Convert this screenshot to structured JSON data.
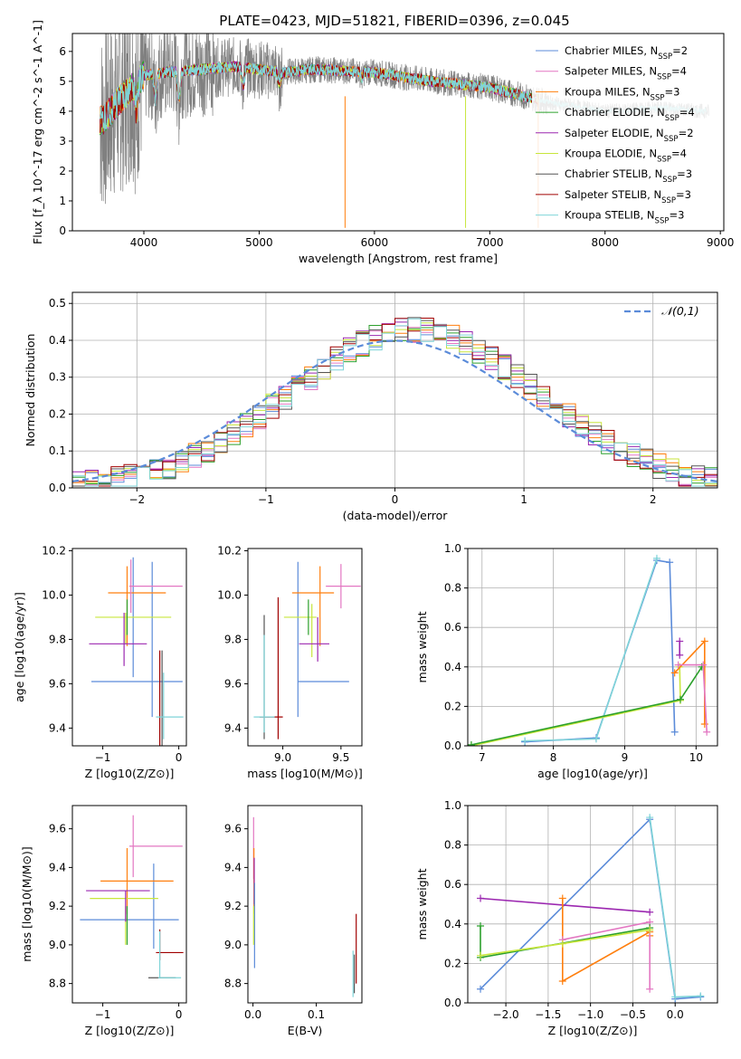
{
  "figure": {
    "title": "PLATE=0423, MJD=51821, FIBERID=0396, z=0.045"
  },
  "colors": {
    "Chabrier MILES": "#5b8bd9",
    "Salpeter MILES": "#e377c2",
    "Kroupa MILES": "#ff7f0e",
    "Chabrier ELODIE": "#2ca02c",
    "Salpeter ELODIE": "#9b27b0",
    "Kroupa ELODIE": "#c8e63c",
    "Chabrier STELIB": "#555555",
    "Salpeter STELIB": "#a00000",
    "Kroupa STELIB": "#7fd4d8",
    "data": "#808080"
  },
  "chart_data": [
    {
      "id": "spectrum",
      "type": "line",
      "xlabel": "wavelength [Angstrom, rest frame]",
      "ylabel": "Flux [f_λ 10^-17 erg cm^-2 s^-1 A^-1]",
      "xlim": [
        3380,
        9030
      ],
      "ylim": [
        0,
        6.6
      ],
      "xticks": [
        4000,
        5000,
        6000,
        7000,
        8000,
        9000
      ],
      "yticks": [
        0,
        1,
        2,
        3,
        4,
        5,
        6
      ],
      "grid": false,
      "legend_position": "upper-right",
      "legend": [
        {
          "name": "Chabrier MILES",
          "label": "Chabrier MILES, N_SSP=2"
        },
        {
          "name": "Salpeter MILES",
          "label": "Salpeter MILES, N_SSP=4"
        },
        {
          "name": "Kroupa MILES",
          "label": "Kroupa MILES, N_SSP=3"
        },
        {
          "name": "Chabrier ELODIE",
          "label": "Chabrier ELODIE, N_SSP=4"
        },
        {
          "name": "Salpeter ELODIE",
          "label": "Salpeter ELODIE, N_SSP=2"
        },
        {
          "name": "Kroupa ELODIE",
          "label": "Kroupa ELODIE, N_SSP=4"
        },
        {
          "name": "Chabrier STELIB",
          "label": "Chabrier STELIB, N_SSP=3"
        },
        {
          "name": "Salpeter STELIB",
          "label": "Salpeter STELIB, N_SSP=3"
        },
        {
          "name": "Kroupa STELIB",
          "label": "Kroupa STELIB, N_SSP=3"
        }
      ],
      "data_range": [
        3620,
        8900
      ],
      "continuum": [
        [
          3650,
          3.7
        ],
        [
          3750,
          4.2
        ],
        [
          3900,
          4.8
        ],
        [
          4000,
          5.2
        ],
        [
          4200,
          5.3
        ],
        [
          4500,
          5.4
        ],
        [
          4800,
          5.5
        ],
        [
          5000,
          5.4
        ],
        [
          5200,
          5.3
        ],
        [
          5500,
          5.4
        ],
        [
          6000,
          5.3
        ],
        [
          6500,
          5.0
        ],
        [
          7000,
          4.8
        ],
        [
          7500,
          4.3
        ],
        [
          8000,
          4.0
        ],
        [
          8500,
          4.1
        ],
        [
          8850,
          4.0
        ]
      ],
      "model_range": [
        3620,
        7420
      ],
      "features": [
        [
          3934,
          4.0
        ],
        [
          4101,
          4.3
        ],
        [
          4304,
          4.3
        ],
        [
          4861,
          4.8
        ],
        [
          5175,
          4.9
        ],
        [
          5890,
          5.1
        ],
        [
          6563,
          5.0
        ]
      ]
    },
    {
      "id": "residuals",
      "type": "bar",
      "xlabel": "(data-model)/error",
      "ylabel": "Normed distribution",
      "xlim": [
        -2.5,
        2.5
      ],
      "ylim": [
        0,
        0.53
      ],
      "xticks": [
        -2,
        -1,
        0,
        1,
        2
      ],
      "yticks": [
        0.0,
        0.1,
        0.2,
        0.3,
        0.4,
        0.5
      ],
      "grid": true,
      "legend_position": "upper-right",
      "reference": {
        "label": "𝒩(0,1)",
        "mean": 0,
        "sigma": 1
      },
      "bin_width": 0.1
    },
    {
      "id": "age-vs-Z",
      "type": "scatter",
      "xlabel": "Z [log10(Z/Z⊙)]",
      "ylabel": "age [log10(age/yr)]",
      "xlim": [
        -1.4,
        0.1
      ],
      "ylim": [
        9.32,
        10.21
      ],
      "xticks": [
        -1,
        0
      ],
      "yticks": [
        9.4,
        9.6,
        9.8,
        10.0,
        10.2
      ],
      "grid": false,
      "errorbars": [
        {
          "series": "Chabrier MILES",
          "x": -0.55,
          "y": 9.61,
          "xerr": 0.6,
          "yerr": 0
        },
        {
          "series": "Chabrier MILES",
          "x": -0.35,
          "y": 9.8,
          "xerr": 0,
          "yerr": 0.35
        },
        {
          "series": "Chabrier MILES",
          "x": -0.6,
          "y": 9.9,
          "xerr": 0,
          "yerr": 0.27
        },
        {
          "series": "Kroupa MILES",
          "x": -0.55,
          "y": 10.01,
          "xerr": 0.38,
          "yerr": 0
        },
        {
          "series": "Kroupa MILES",
          "x": -0.68,
          "y": 9.95,
          "xerr": 0,
          "yerr": 0.18
        },
        {
          "series": "Salpeter MILES",
          "x": -0.3,
          "y": 10.04,
          "xerr": 0.35,
          "yerr": 0
        },
        {
          "series": "Salpeter MILES",
          "x": -0.63,
          "y": 10.04,
          "xerr": 0,
          "yerr": 0.12
        },
        {
          "series": "Kroupa ELODIE",
          "x": -0.6,
          "y": 9.9,
          "xerr": 0.5,
          "yerr": 0
        },
        {
          "series": "Kroupa ELODIE",
          "x": -0.7,
          "y": 9.85,
          "xerr": 0,
          "yerr": 0.07
        },
        {
          "series": "Chabrier ELODIE",
          "x": -0.68,
          "y": 9.9,
          "xerr": 0,
          "yerr": 0.08
        },
        {
          "series": "Salpeter ELODIE",
          "x": -0.8,
          "y": 9.78,
          "xerr": 0.38,
          "yerr": 0
        },
        {
          "series": "Salpeter ELODIE",
          "x": -0.72,
          "y": 9.8,
          "xerr": 0,
          "yerr": 0.12
        },
        {
          "series": "Chabrier STELIB",
          "x": -0.22,
          "y": 9.45,
          "xerr": 0,
          "yerr": 0.3
        },
        {
          "series": "Salpeter STELIB",
          "x": -0.25,
          "y": 9.45,
          "xerr": 0,
          "yerr": 0.3
        },
        {
          "series": "Kroupa STELIB",
          "x": -0.12,
          "y": 9.45,
          "xerr": 0.18,
          "yerr": 0
        },
        {
          "series": "Kroupa STELIB",
          "x": -0.2,
          "y": 9.5,
          "xerr": 0,
          "yerr": 0.15
        }
      ]
    },
    {
      "id": "age-vs-mass",
      "type": "scatter",
      "xlabel": "mass [log10(M/M⊙)]",
      "ylabel": "",
      "xlim": [
        8.7,
        9.68
      ],
      "ylim": [
        9.32,
        10.21
      ],
      "xticks": [
        9.0,
        9.5
      ],
      "yticks": [
        9.4,
        9.6,
        9.8,
        10.0,
        10.2
      ],
      "grid": false,
      "errorbars": [
        {
          "series": "Chabrier MILES",
          "x": 9.35,
          "y": 9.61,
          "xerr": 0.22,
          "yerr": 0
        },
        {
          "series": "Chabrier MILES",
          "x": 9.13,
          "y": 9.8,
          "xerr": 0,
          "yerr": 0.35
        },
        {
          "series": "Kroupa MILES",
          "x": 9.26,
          "y": 10.01,
          "xerr": 0.18,
          "yerr": 0
        },
        {
          "series": "Kroupa MILES",
          "x": 9.32,
          "y": 9.95,
          "xerr": 0,
          "yerr": 0.18
        },
        {
          "series": "Salpeter MILES",
          "x": 9.52,
          "y": 10.04,
          "xerr": 0.15,
          "yerr": 0
        },
        {
          "series": "Salpeter MILES",
          "x": 9.5,
          "y": 10.04,
          "xerr": 0,
          "yerr": 0.1
        },
        {
          "series": "Kroupa ELODIE",
          "x": 9.15,
          "y": 9.9,
          "xerr": 0.14,
          "yerr": 0
        },
        {
          "series": "Kroupa ELODIE",
          "x": 9.25,
          "y": 9.84,
          "xerr": 0,
          "yerr": 0.12
        },
        {
          "series": "Chabrier ELODIE",
          "x": 9.22,
          "y": 9.9,
          "xerr": 0,
          "yerr": 0.08
        },
        {
          "series": "Salpeter ELODIE",
          "x": 9.27,
          "y": 9.78,
          "xerr": 0.13,
          "yerr": 0
        },
        {
          "series": "Salpeter ELODIE",
          "x": 9.3,
          "y": 9.8,
          "xerr": 0,
          "yerr": 0.1
        },
        {
          "series": "Chabrier STELIB",
          "x": 8.84,
          "y": 9.63,
          "xerr": 0,
          "yerr": 0.28
        },
        {
          "series": "Salpeter STELIB",
          "x": 8.96,
          "y": 9.67,
          "xerr": 0,
          "yerr": 0.32
        },
        {
          "series": "Salpeter STELIB",
          "x": 8.9,
          "y": 9.45,
          "xerr": 0.1,
          "yerr": 0
        },
        {
          "series": "Kroupa STELIB",
          "x": 8.84,
          "y": 9.45,
          "xerr": 0.09,
          "yerr": 0
        },
        {
          "series": "Kroupa STELIB",
          "x": 8.84,
          "y": 9.6,
          "xerr": 0,
          "yerr": 0.22
        }
      ]
    },
    {
      "id": "weight-vs-age",
      "type": "line",
      "xlabel": "age [log10(age/yr)]",
      "ylabel": "mass weight",
      "xlim": [
        6.8,
        10.3
      ],
      "ylim": [
        0,
        1.0
      ],
      "xticks": [
        7,
        8,
        9,
        10
      ],
      "yticks": [
        0.0,
        0.2,
        0.4,
        0.6,
        0.8,
        1.0
      ],
      "grid": true,
      "series": [
        {
          "series": "Chabrier MILES",
          "points": [
            [
              7.6,
              0.02
            ],
            [
              8.6,
              0.04
            ],
            [
              9.45,
              0.94
            ],
            [
              9.63,
              0.93
            ],
            [
              9.7,
              0.07
            ]
          ]
        },
        {
          "series": "Kroupa STELIB",
          "points": [
            [
              7.6,
              0.025
            ],
            [
              8.6,
              0.035
            ],
            [
              9.45,
              0.95
            ]
          ]
        },
        {
          "series": "Kroupa ELODIE",
          "points": [
            [
              6.85,
              0.0
            ],
            [
              9.78,
              0.23
            ],
            [
              9.77,
              0.4
            ]
          ]
        },
        {
          "series": "Chabrier ELODIE",
          "points": [
            [
              6.85,
              0.005
            ],
            [
              9.78,
              0.235
            ],
            [
              10.08,
              0.4
            ]
          ]
        },
        {
          "series": "Kroupa MILES",
          "points": [
            [
              9.7,
              0.37
            ],
            [
              10.12,
              0.53
            ],
            [
              10.12,
              0.11
            ]
          ]
        },
        {
          "series": "Salpeter MILES",
          "points": [
            [
              9.75,
              0.41
            ],
            [
              10.1,
              0.41
            ],
            [
              10.15,
              0.07
            ]
          ]
        },
        {
          "series": "Salpeter ELODIE",
          "points": [
            [
              9.77,
              0.53
            ],
            [
              9.77,
              0.46
            ]
          ]
        }
      ]
    },
    {
      "id": "mass-vs-Z",
      "type": "scatter",
      "xlabel": "Z [log10(Z/Z⊙)]",
      "ylabel": "mass [log10(M/M⊙)]",
      "xlim": [
        -1.4,
        0.1
      ],
      "ylim": [
        8.7,
        9.72
      ],
      "xticks": [
        -1,
        0
      ],
      "yticks": [
        8.8,
        9.0,
        9.2,
        9.4,
        9.6
      ],
      "grid": false,
      "errorbars": [
        {
          "series": "Chabrier MILES",
          "x": -0.65,
          "y": 9.13,
          "xerr": 0.65,
          "yerr": 0
        },
        {
          "series": "Chabrier MILES",
          "x": -0.33,
          "y": 9.2,
          "xerr": 0,
          "yerr": 0.22
        },
        {
          "series": "Kroupa MILES",
          "x": -0.55,
          "y": 9.33,
          "xerr": 0.48,
          "yerr": 0
        },
        {
          "series": "Kroupa MILES",
          "x": -0.68,
          "y": 9.33,
          "xerr": 0,
          "yerr": 0.17
        },
        {
          "series": "Salpeter MILES",
          "x": -0.3,
          "y": 9.51,
          "xerr": 0.35,
          "yerr": 0
        },
        {
          "series": "Salpeter MILES",
          "x": -0.6,
          "y": 9.51,
          "xerr": 0,
          "yerr": 0.16
        },
        {
          "series": "Kroupa ELODIE",
          "x": -0.72,
          "y": 9.24,
          "xerr": 0.45,
          "yerr": 0
        },
        {
          "series": "Kroupa ELODIE",
          "x": -0.7,
          "y": 9.1,
          "xerr": 0,
          "yerr": 0.1
        },
        {
          "series": "Chabrier ELODIE",
          "x": -0.68,
          "y": 9.1,
          "xerr": 0,
          "yerr": 0.1
        },
        {
          "series": "Salpeter ELODIE",
          "x": -0.8,
          "y": 9.28,
          "xerr": 0.42,
          "yerr": 0
        },
        {
          "series": "Salpeter ELODIE",
          "x": -0.7,
          "y": 9.2,
          "xerr": 0,
          "yerr": 0.08
        },
        {
          "series": "Chabrier STELIB",
          "x": -0.22,
          "y": 8.83,
          "xerr": 0.18,
          "yerr": 0
        },
        {
          "series": "Salpeter STELIB",
          "x": -0.12,
          "y": 8.96,
          "xerr": 0.18,
          "yerr": 0
        },
        {
          "series": "Salpeter STELIB",
          "x": -0.25,
          "y": 9.0,
          "xerr": 0,
          "yerr": 0.08
        },
        {
          "series": "Kroupa STELIB",
          "x": -0.12,
          "y": 8.83,
          "xerr": 0.15,
          "yerr": 0
        },
        {
          "series": "Kroupa STELIB",
          "x": -0.25,
          "y": 8.95,
          "xerr": 0,
          "yerr": 0.12
        }
      ]
    },
    {
      "id": "mass-vs-EBV",
      "type": "scatter",
      "xlabel": "E(B-V)",
      "ylabel": "",
      "xlim": [
        -0.008,
        0.172
      ],
      "ylim": [
        8.7,
        9.72
      ],
      "xticks": [
        0.0,
        0.1
      ],
      "yticks": [
        8.8,
        9.0,
        9.2,
        9.4,
        9.6
      ],
      "grid": false,
      "errorbars": [
        {
          "series": "Salpeter MILES",
          "x": 0.001,
          "y": 9.5,
          "xerr": 0,
          "yerr": 0.16
        },
        {
          "series": "Kroupa MILES",
          "x": 0.0015,
          "y": 9.33,
          "xerr": 0,
          "yerr": 0.17
        },
        {
          "series": "Salpeter ELODIE",
          "x": 0.002,
          "y": 9.33,
          "xerr": 0,
          "yerr": 0.12
        },
        {
          "series": "Chabrier MILES",
          "x": 0.0025,
          "y": 9.1,
          "xerr": 0,
          "yerr": 0.22
        },
        {
          "series": "Kroupa ELODIE",
          "x": 0.001,
          "y": 9.1,
          "xerr": 0,
          "yerr": 0.1
        },
        {
          "series": "Salpeter STELIB",
          "x": 0.163,
          "y": 8.98,
          "xerr": 0,
          "yerr": 0.18
        },
        {
          "series": "Chabrier STELIB",
          "x": 0.16,
          "y": 8.85,
          "xerr": 0,
          "yerr": 0.1
        },
        {
          "series": "Kroupa STELIB",
          "x": 0.158,
          "y": 8.85,
          "xerr": 0,
          "yerr": 0.12
        }
      ]
    },
    {
      "id": "weight-vs-Z",
      "type": "line",
      "xlabel": "Z [log10(Z/Z⊙)]",
      "ylabel": "mass weight",
      "xlim": [
        -2.45,
        0.5
      ],
      "ylim": [
        0,
        1.0
      ],
      "xticks": [
        -2.0,
        -1.5,
        -1.0,
        -0.5,
        0.0
      ],
      "yticks": [
        0.0,
        0.2,
        0.4,
        0.6,
        0.8,
        1.0
      ],
      "grid": true,
      "series": [
        {
          "series": "Chabrier MILES",
          "points": [
            [
              -2.3,
              0.07
            ],
            [
              -0.3,
              0.93
            ],
            [
              0.0,
              0.02
            ],
            [
              0.3,
              0.03
            ]
          ]
        },
        {
          "series": "Kroupa STELIB",
          "points": [
            [
              -0.3,
              0.94
            ],
            [
              0.0,
              0.03
            ],
            [
              0.3,
              0.035
            ]
          ]
        },
        {
          "series": "Salpeter ELODIE",
          "points": [
            [
              -2.3,
              0.53
            ],
            [
              -0.3,
              0.46
            ]
          ]
        },
        {
          "series": "Kroupa MILES",
          "points": [
            [
              -1.33,
              0.53
            ],
            [
              -1.33,
              0.11
            ],
            [
              -0.3,
              0.36
            ],
            [
              -0.3,
              0.34
            ]
          ]
        },
        {
          "series": "Salpeter MILES",
          "points": [
            [
              -1.33,
              0.32
            ],
            [
              -0.3,
              0.41
            ],
            [
              -0.3,
              0.07
            ]
          ]
        },
        {
          "series": "Chabrier ELODIE",
          "points": [
            [
              -2.3,
              0.39
            ],
            [
              -2.3,
              0.23
            ],
            [
              -0.3,
              0.38
            ]
          ]
        },
        {
          "series": "Kroupa ELODIE",
          "points": [
            [
              -2.3,
              0.24
            ],
            [
              -1.33,
              0.3
            ],
            [
              -0.3,
              0.37
            ]
          ]
        }
      ]
    }
  ]
}
